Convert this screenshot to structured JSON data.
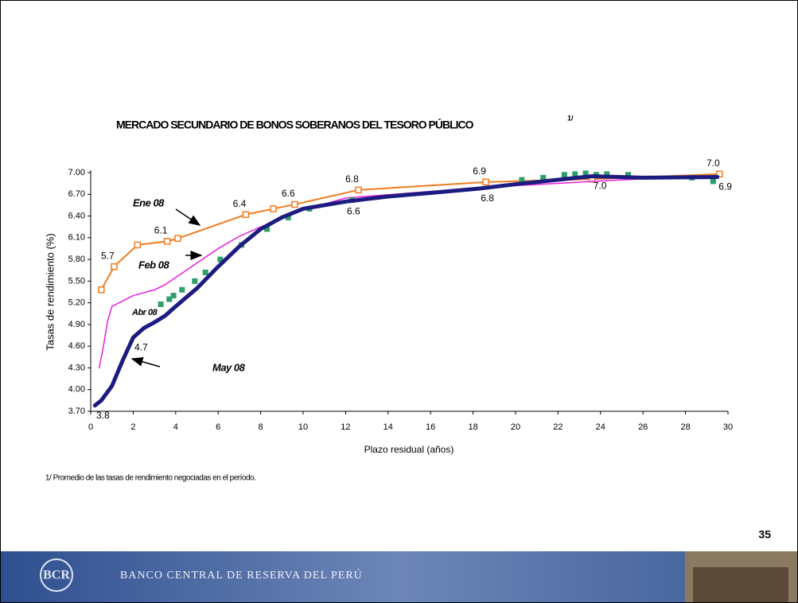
{
  "chart_data": {
    "type": "line",
    "title": "MERCADO SECUNDARIO DE BONOS SOBERANOS DEL TESORO PÚBLICO",
    "title_note": "1/",
    "xlabel": "Plazo residual (años)",
    "ylabel": "Tasas de rendimiento (%)",
    "xlim": [
      0,
      30
    ],
    "xticks": [
      0,
      2,
      4,
      6,
      8,
      10,
      12,
      14,
      16,
      18,
      20,
      22,
      24,
      26,
      28,
      30
    ],
    "ylim": [
      3.7,
      7.0
    ],
    "yticks": [
      {
        "value": 3.7,
        "label": "3.70"
      },
      {
        "value": 4.0,
        "label": "4.00"
      },
      {
        "value": 4.3,
        "label": "4.30"
      },
      {
        "value": 4.6,
        "label": "4.60"
      },
      {
        "value": 4.9,
        "label": "4.90"
      },
      {
        "value": 5.2,
        "label": "5.20"
      },
      {
        "value": 5.5,
        "label": "5.50"
      },
      {
        "value": 5.8,
        "label": "5.80"
      },
      {
        "value": 6.1,
        "label": "6.10"
      },
      {
        "value": 6.4,
        "label": "6.40"
      },
      {
        "value": 6.7,
        "label": "6.70"
      },
      {
        "value": 7.0,
        "label": "7.00"
      }
    ],
    "series": [
      {
        "name": "Ene 08",
        "type": "line",
        "marker": "square",
        "color": "#f07c1e",
        "x": [
          0.5,
          1.1,
          2.2,
          3.6,
          4.1,
          7.3,
          8.6,
          9.6,
          12.6,
          18.6,
          23.6,
          29.6
        ],
        "values": [
          5.38,
          5.7,
          6.0,
          6.05,
          6.09,
          6.42,
          6.5,
          6.56,
          6.76,
          6.87,
          6.91,
          6.98
        ],
        "value_labels": [
          null,
          "5.7",
          null,
          "6.1",
          null,
          "6.4",
          null,
          "6.6",
          "6.8",
          "6.9",
          null,
          "7.0"
        ]
      },
      {
        "name": "Feb 08",
        "type": "line",
        "color": "#e81ee0",
        "x": [
          0.4,
          0.6,
          0.8,
          1,
          2,
          3,
          3.5,
          4,
          5,
          6,
          7,
          8,
          10,
          12,
          16,
          20,
          25,
          29.5
        ],
        "values": [
          4.3,
          4.6,
          4.95,
          5.15,
          5.3,
          5.38,
          5.45,
          5.55,
          5.75,
          5.95,
          6.12,
          6.25,
          6.48,
          6.65,
          6.74,
          6.82,
          6.9,
          6.96
        ]
      },
      {
        "name": "Abr 08",
        "type": "scatter",
        "color": "#2e9e6a",
        "x": [
          3.3,
          3.7,
          3.9,
          4.3,
          4.9,
          5.4,
          6.1,
          7.1,
          8.3,
          9.3,
          10.3,
          12.3,
          20.3,
          21.3,
          22.3,
          22.8,
          23.3,
          23.8,
          24.3,
          25.3,
          28.3,
          29.3
        ],
        "values": [
          5.18,
          5.25,
          5.3,
          5.38,
          5.5,
          5.62,
          5.8,
          6.0,
          6.22,
          6.38,
          6.5,
          6.62,
          6.9,
          6.93,
          6.97,
          6.98,
          6.99,
          6.97,
          6.98,
          6.97,
          6.93,
          6.88
        ]
      },
      {
        "name": "May 08",
        "type": "line",
        "color": "#1c1c80",
        "x": [
          0.2,
          0.5,
          1,
          1.5,
          2,
          2.5,
          3,
          3.5,
          4,
          5,
          6,
          7,
          8,
          9,
          10,
          12,
          14,
          16,
          18.3,
          20,
          23.6,
          26,
          29.5
        ],
        "values": [
          3.78,
          3.85,
          4.05,
          4.4,
          4.72,
          4.85,
          4.93,
          5.02,
          5.15,
          5.4,
          5.7,
          5.98,
          6.22,
          6.38,
          6.5,
          6.6,
          6.67,
          6.72,
          6.78,
          6.84,
          6.95,
          6.93,
          6.94
        ],
        "value_labels": [
          "3.8",
          null,
          null,
          null,
          "4.7",
          null,
          null,
          null,
          null,
          null,
          null,
          null,
          null,
          null,
          null,
          "6.6",
          null,
          null,
          "6.8",
          null,
          "7.0",
          null,
          "6.9"
        ]
      }
    ],
    "footnote": "1/ Promedio de las tasas de rendimiento negociadas en el período.",
    "page_number": "35",
    "institution": "BANCO CENTRAL DE RESERVA DEL PERÚ"
  }
}
